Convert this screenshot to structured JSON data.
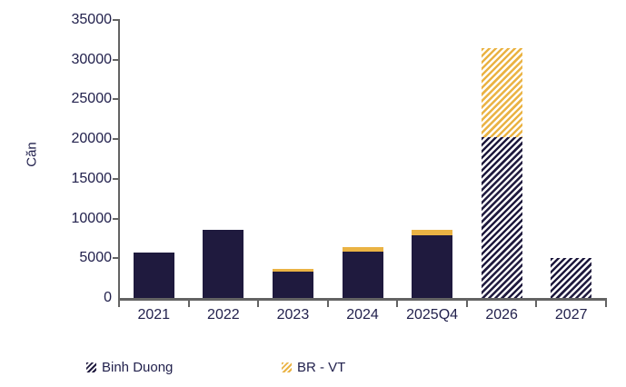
{
  "chart_data": {
    "type": "bar",
    "stacked": true,
    "title": "",
    "xlabel": "",
    "ylabel": "Căn",
    "categories": [
      "2021",
      "2022",
      "2023",
      "2024",
      "2025Q4",
      "2026",
      "2027"
    ],
    "series": [
      {
        "name": "Binh Duong",
        "color": "#1F1A3E",
        "values": [
          5700,
          8600,
          3300,
          5800,
          7900,
          20300,
          5000
        ]
      },
      {
        "name": "BR - VT",
        "color": "#EAB344",
        "values": [
          0,
          0,
          350,
          600,
          700,
          11100,
          0
        ]
      }
    ],
    "forecast_categories": [
      "2026",
      "2027"
    ],
    "forecast_style": "diagonal-hatch",
    "ylim": [
      0,
      35000
    ],
    "ytick_step": 5000,
    "yticks": [
      "0",
      "5000",
      "10000",
      "15000",
      "20000",
      "25000",
      "30000",
      "35000"
    ],
    "grid": false,
    "legend_position": "bottom"
  },
  "legend": {
    "items": [
      {
        "label": "Binh Duong",
        "color": "#1F1A3E",
        "hatched": true
      },
      {
        "label": "BR - VT",
        "color": "#EAB344",
        "hatched": true
      }
    ]
  },
  "colors": {
    "navy": "#1F1A3E",
    "gold": "#EAB344",
    "axis": "#636363",
    "text": "#22214D",
    "background": "#FFFFFF"
  }
}
